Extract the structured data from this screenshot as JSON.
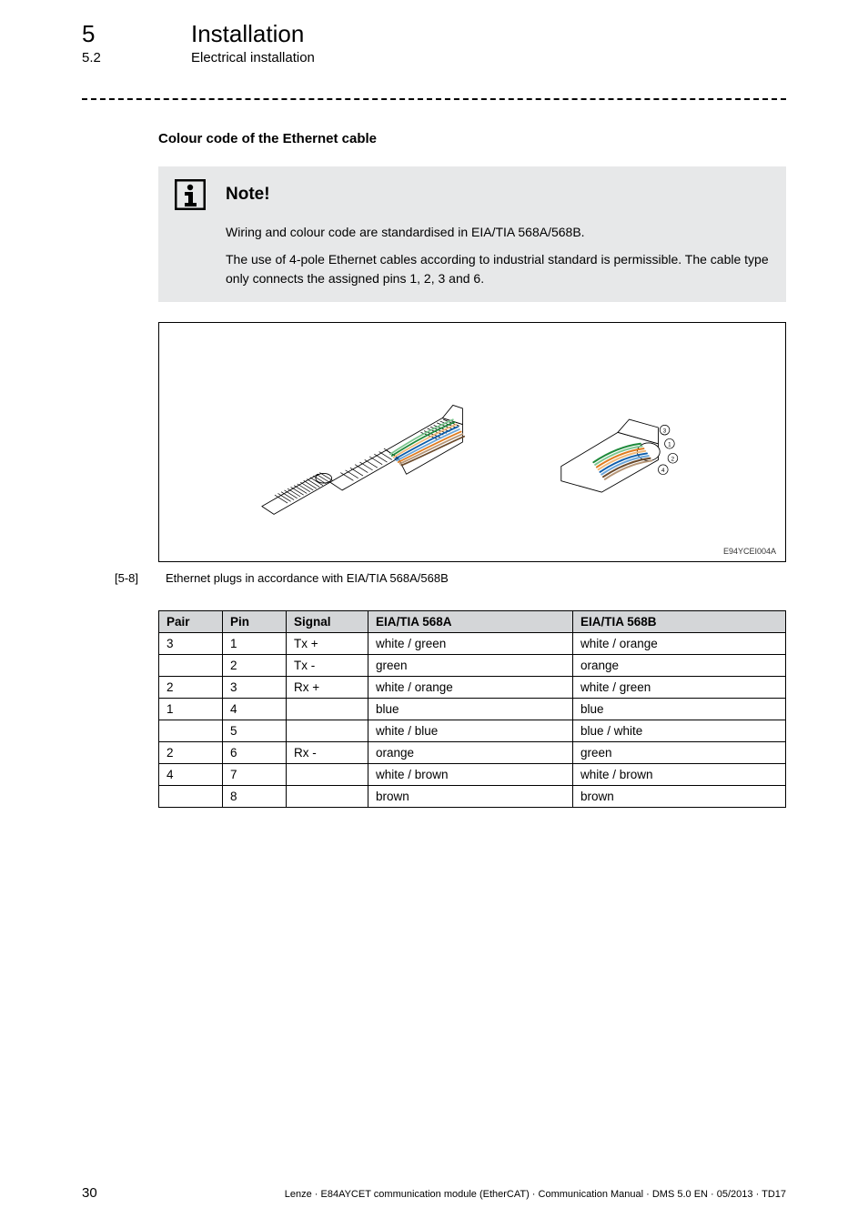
{
  "header": {
    "chapter_num": "5",
    "chapter_title": "Installation",
    "sub_num": "5.2",
    "sub_title": "Electrical installation"
  },
  "section_heading": "Colour code of the Ethernet cable",
  "note": {
    "label": "Note!",
    "para1": "Wiring and colour code are standardised in EIA/TIA 568A/568B.",
    "para2": "The use of 4-pole Ethernet cables according to industrial standard is permissible. The cable type only connects the assigned pins 1, 2, 3 and 6."
  },
  "figure": {
    "ref": "E94YCEI004A",
    "caption_num": "[5-8]",
    "caption_text": "Ethernet plugs in accordance with EIA/TIA 568A/568B",
    "wire_colors": {
      "pair1_a": "#0a5cab",
      "pair1_b": "#6aa5d8",
      "pair2_a": "#e07b1e",
      "pair2_b": "#f0b97a",
      "pair3_a": "#1e8a3b",
      "pair3_b": "#7cc68f",
      "pair4_a": "#6b4a2b",
      "pair4_b": "#b59576"
    },
    "plug_body_fill": "#ffffff",
    "plug_body_stroke": "#000000",
    "hatch_stroke": "#000000"
  },
  "table": {
    "headers": {
      "pair": "Pair",
      "pin": "Pin",
      "signal": "Signal",
      "a": "EIA/TIA 568A",
      "b": "EIA/TIA 568B"
    },
    "rows": [
      {
        "pair": "3",
        "pin": "1",
        "signal": "Tx +",
        "a": "white / green",
        "b": "white / orange"
      },
      {
        "pair": "",
        "pin": "2",
        "signal": "Tx -",
        "a": "green",
        "b": "orange"
      },
      {
        "pair": "2",
        "pin": "3",
        "signal": "Rx +",
        "a": "white / orange",
        "b": "white / green"
      },
      {
        "pair": "1",
        "pin": "4",
        "signal": "",
        "a": "blue",
        "b": "blue"
      },
      {
        "pair": "",
        "pin": "5",
        "signal": "",
        "a": "white / blue",
        "b": "blue / white"
      },
      {
        "pair": "2",
        "pin": "6",
        "signal": "Rx -",
        "a": "orange",
        "b": "green"
      },
      {
        "pair": "4",
        "pin": "7",
        "signal": "",
        "a": "white / brown",
        "b": "white / brown"
      },
      {
        "pair": "",
        "pin": "8",
        "signal": "",
        "a": "brown",
        "b": "brown"
      }
    ]
  },
  "footer": {
    "page": "30",
    "text": "Lenze · E84AYCET communication module (EtherCAT) · Communication Manual · DMS 5.0 EN · 05/2013 · TD17"
  }
}
